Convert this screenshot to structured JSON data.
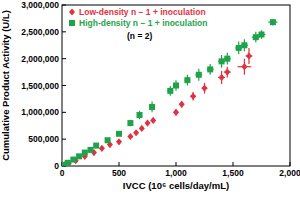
{
  "chart_data": {
    "type": "scatter",
    "x_label": "IVCC (10⁶ cells/day/mL)",
    "y_label": "Cumulative Product Activity (U/L)",
    "annotation": "(n = 2)",
    "legend": "top-left",
    "grid": false,
    "xlim": [
      0,
      2000
    ],
    "xticks": [
      0,
      {
        "value": 500,
        "label": "500"
      },
      {
        "value": 1000,
        "label": "1,000"
      },
      {
        "value": 1500,
        "label": "1,500"
      },
      {
        "value": 2000,
        "label": "2,000"
      }
    ],
    "ylim": [
      0,
      3000000
    ],
    "yticks": [
      0,
      {
        "value": 500000,
        "label": "500,000"
      },
      {
        "value": 1000000,
        "label": "1,000,000"
      },
      {
        "value": 1500000,
        "label": "1,500,000"
      },
      {
        "value": 2000000,
        "label": "2,000,000"
      },
      {
        "value": 2500000,
        "label": "2,500,000"
      },
      {
        "value": 3000000,
        "label": "3,000,000"
      }
    ],
    "series": [
      {
        "name": "Low-density n − 1 + inoculation",
        "color": "#e0313f",
        "marker": "diamond",
        "x": [
          20,
          60,
          120,
          200,
          280,
          350,
          420,
          500,
          600,
          650,
          700,
          750,
          800,
          1000,
          1050,
          1150,
          1250,
          1400,
          1450,
          1600,
          1640
        ],
        "values": [
          20000,
          50000,
          100000,
          180000,
          250000,
          330000,
          400000,
          450000,
          550000,
          620000,
          700000,
          800000,
          850000,
          1000000,
          1150000,
          1300000,
          1450000,
          1650000,
          1750000,
          1850000,
          2050000
        ],
        "errors": [
          5000,
          10000,
          10000,
          15000,
          20000,
          20000,
          25000,
          20000,
          30000,
          30000,
          30000,
          40000,
          40000,
          60000,
          60000,
          80000,
          100000,
          120000,
          100000,
          150000,
          150000
        ],
        "x_errors": [
          3,
          5,
          5,
          8,
          8,
          10,
          10,
          10,
          12,
          12,
          12,
          15,
          15,
          20,
          20,
          25,
          25,
          30,
          30,
          60,
          30
        ]
      },
      {
        "name": "High-density n − 1 + inoculation",
        "color": "#1fa34a",
        "marker": "square",
        "x": [
          10,
          50,
          100,
          150,
          200,
          250,
          300,
          400,
          500,
          600,
          680,
          790,
          950,
          1000,
          1100,
          1200,
          1300,
          1400,
          1450,
          1550,
          1600,
          1700,
          1750,
          1850
        ],
        "values": [
          20000,
          60000,
          120000,
          180000,
          250000,
          300000,
          380000,
          480000,
          600000,
          800000,
          950000,
          1100000,
          1400000,
          1500000,
          1600000,
          1700000,
          1800000,
          1950000,
          2000000,
          2200000,
          2250000,
          2400000,
          2450000,
          2680000
        ],
        "errors": [
          5000,
          10000,
          10000,
          15000,
          20000,
          20000,
          25000,
          30000,
          40000,
          60000,
          80000,
          100000,
          90000,
          100000,
          100000,
          110000,
          100000,
          120000,
          110000,
          120000,
          110000,
          100000,
          80000,
          60000
        ],
        "x_errors": [
          3,
          5,
          5,
          8,
          8,
          10,
          10,
          12,
          15,
          20,
          20,
          25,
          25,
          25,
          25,
          30,
          30,
          30,
          30,
          30,
          30,
          35,
          35,
          40
        ]
      }
    ]
  }
}
